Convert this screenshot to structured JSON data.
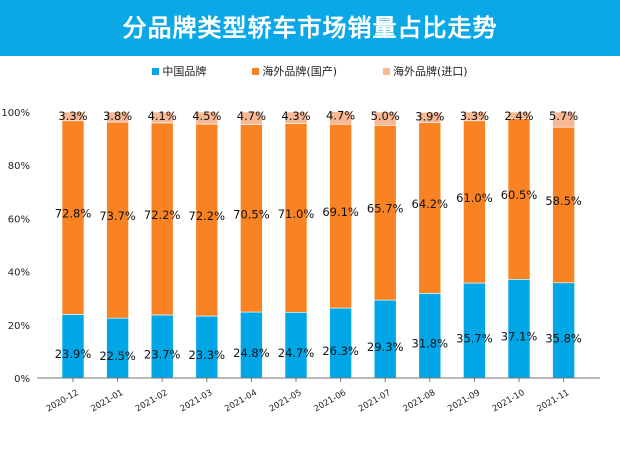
{
  "chart_data": {
    "type": "bar",
    "stacked": true,
    "title": "分品牌类型轿车市场销量占比走势",
    "categories": [
      "2020-12",
      "2021-01",
      "2021-02",
      "2021-03",
      "2021-04",
      "2021-05",
      "2021-06",
      "2021-07",
      "2021-08",
      "2021-09",
      "2021-10",
      "2021-11"
    ],
    "series": [
      {
        "name": "中国品牌",
        "color": "#00a6e6",
        "values": [
          23.9,
          22.5,
          23.7,
          23.3,
          24.8,
          24.7,
          26.3,
          29.3,
          31.8,
          35.7,
          37.1,
          35.8
        ]
      },
      {
        "name": "海外品牌(国产)",
        "color": "#f98322",
        "values": [
          72.8,
          73.7,
          72.2,
          72.2,
          70.5,
          71.0,
          69.1,
          65.7,
          64.2,
          61.0,
          60.5,
          58.5
        ]
      },
      {
        "name": "海外品牌(进口)",
        "color": "#f7b895",
        "values": [
          3.3,
          3.8,
          4.1,
          4.5,
          4.7,
          4.3,
          4.7,
          5.0,
          3.9,
          3.3,
          2.4,
          5.7
        ]
      }
    ],
    "ylim": [
      0,
      100
    ],
    "yticks": [
      "0%",
      "20%",
      "40%",
      "60%",
      "80%",
      "100%"
    ],
    "legend_position": "top",
    "grid": false
  }
}
